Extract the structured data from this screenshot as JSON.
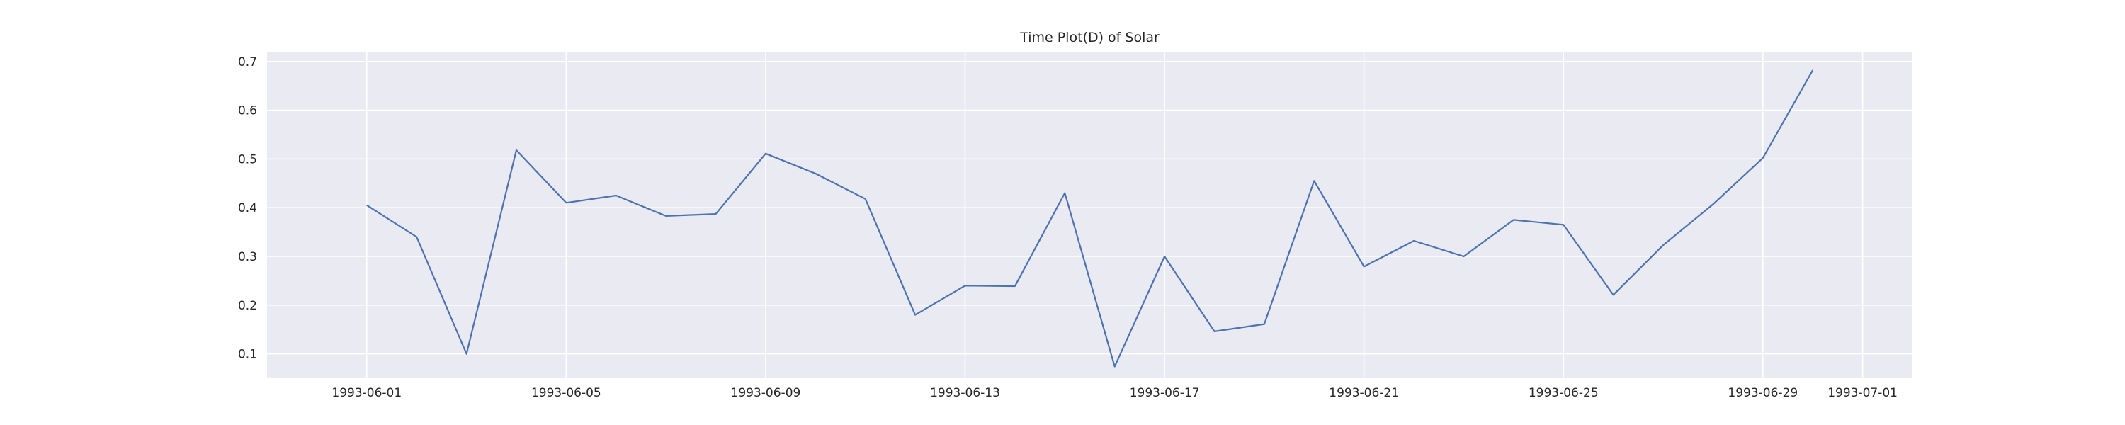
{
  "chart_data": {
    "type": "line",
    "title": "Time Plot(D) of Solar",
    "xlabel": "",
    "ylabel": "",
    "grid": true,
    "legend": "none",
    "colors": {
      "background": "#eaeaf2",
      "grid": "#ffffff",
      "line": "#4c72b0"
    },
    "xlim": [
      "1993-05-30",
      "1993-07-02"
    ],
    "ylim": [
      0.05,
      0.72
    ],
    "x_ticks": [
      "1993-06-01",
      "1993-06-05",
      "1993-06-09",
      "1993-06-13",
      "1993-06-17",
      "1993-06-21",
      "1993-06-25",
      "1993-06-29",
      "1993-07-01"
    ],
    "y_ticks": [
      "0.1",
      "0.2",
      "0.3",
      "0.4",
      "0.5",
      "0.6",
      "0.7"
    ],
    "series": [
      {
        "x": [
          "1993-06-01",
          "1993-06-02",
          "1993-06-03",
          "1993-06-04",
          "1993-06-05",
          "1993-06-06",
          "1993-06-07",
          "1993-06-08",
          "1993-06-09",
          "1993-06-10",
          "1993-06-11",
          "1993-06-12",
          "1993-06-13",
          "1993-06-14",
          "1993-06-15",
          "1993-06-16",
          "1993-06-17",
          "1993-06-18",
          "1993-06-19",
          "1993-06-20",
          "1993-06-21",
          "1993-06-22",
          "1993-06-23",
          "1993-06-24",
          "1993-06-25",
          "1993-06-26",
          "1993-06-27",
          "1993-06-28",
          "1993-06-29",
          "1993-06-30"
        ],
        "values": [
          0.405,
          0.34,
          0.1,
          0.518,
          0.41,
          0.425,
          0.383,
          0.387,
          0.511,
          0.47,
          0.418,
          0.18,
          0.24,
          0.239,
          0.43,
          0.074,
          0.3,
          0.146,
          0.161,
          0.455,
          0.279,
          0.332,
          0.3,
          0.375,
          0.365,
          0.221,
          0.323,
          0.407,
          0.502,
          0.682
        ]
      }
    ]
  }
}
